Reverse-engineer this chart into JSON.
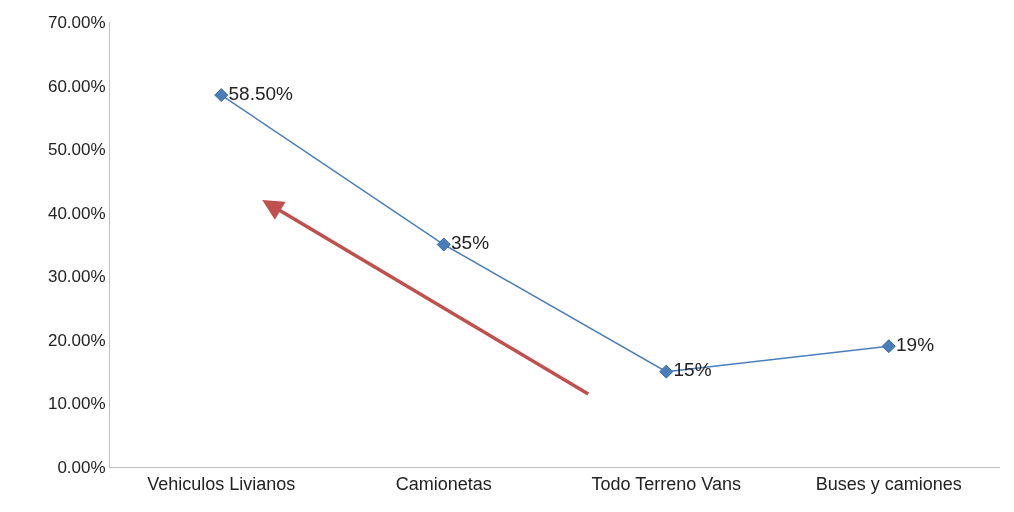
{
  "chart_data": {
    "type": "line",
    "categories": [
      "Vehiculos Livianos",
      "Camionetas",
      "Todo Terreno Vans",
      "Buses y camiones"
    ],
    "series": [
      {
        "color": "#4a7ebb",
        "values": [
          58.5,
          35,
          15,
          19
        ],
        "value_labels": [
          "58.50%",
          "35%",
          "15%",
          "19%"
        ]
      }
    ],
    "ylim": [
      0,
      70
    ],
    "yticks": [
      {
        "value": 0,
        "label": "0.00%"
      },
      {
        "value": 10,
        "label": "10.00%"
      },
      {
        "value": 20,
        "label": "20.00%"
      },
      {
        "value": 30,
        "label": "30.00%"
      },
      {
        "value": 40,
        "label": "40.00%"
      },
      {
        "value": 50,
        "label": "50.00%"
      },
      {
        "value": 60,
        "label": "60.00%"
      },
      {
        "value": 70,
        "label": "70.00%"
      }
    ],
    "grid": false,
    "marker": "diamond",
    "line_style": "solid"
  }
}
